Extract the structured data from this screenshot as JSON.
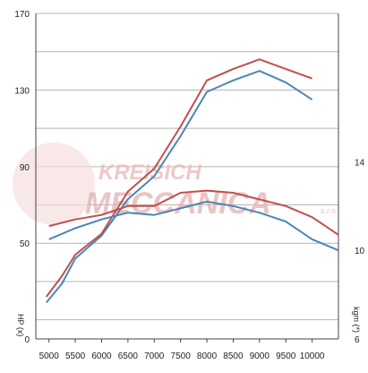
{
  "chart_data": {
    "type": "line",
    "title": "",
    "x": [
      5000,
      5500,
      6000,
      6500,
      7000,
      7500,
      8000,
      8500,
      9000,
      9500,
      10000
    ],
    "x_tick_labels": [
      "5000",
      "5500",
      "6000",
      "6500",
      "7000",
      "7500",
      "8000",
      "8500",
      "9000",
      "9500",
      "10000"
    ],
    "xlim": [
      4750,
      10500
    ],
    "y_left": {
      "label": "HP (x)",
      "ticks": [
        0,
        50,
        90,
        130,
        170
      ],
      "ylim": [
        0,
        170
      ]
    },
    "y_right": {
      "label": "kgm (*)",
      "ticks": [
        6,
        10,
        14
      ],
      "ylim": [
        6,
        20.7
      ]
    },
    "grid": true,
    "series": [
      {
        "axis": "left",
        "color": "#4a86b5",
        "x": [
          4950,
          5250,
          5500,
          6000,
          6500,
          7000,
          7500,
          8000,
          8500,
          9000,
          9500,
          10000
        ],
        "values": [
          19,
          29,
          42,
          54,
          73,
          85,
          106,
          129,
          135,
          140,
          134,
          125
        ]
      },
      {
        "axis": "left",
        "color": "#c0504d",
        "x": [
          4950,
          5250,
          5500,
          6000,
          6500,
          7000,
          7500,
          8000,
          8500,
          9000,
          9500,
          10000
        ],
        "values": [
          22,
          33,
          44,
          55,
          77,
          89,
          111,
          135,
          141,
          146,
          141,
          136
        ]
      },
      {
        "axis": "right",
        "color": "#4a86b5",
        "x": [
          5000,
          5500,
          6000,
          6500,
          7000,
          7500,
          8000,
          8500,
          9000,
          9500,
          10000,
          10500
        ],
        "values": [
          10.5,
          11.0,
          11.4,
          11.7,
          11.6,
          11.9,
          12.2,
          12.0,
          11.7,
          11.3,
          10.5,
          10.0
        ]
      },
      {
        "axis": "right",
        "color": "#c0504d",
        "x": [
          5000,
          5500,
          6000,
          6500,
          7000,
          7500,
          8000,
          8500,
          9000,
          9500,
          10000,
          10500
        ],
        "values": [
          11.1,
          11.4,
          11.6,
          12.0,
          12.0,
          12.6,
          12.7,
          12.6,
          12.3,
          12.0,
          11.5,
          10.7
        ]
      }
    ]
  },
  "watermark": {
    "text_line1": "KREISICH",
    "text_line2": "MECCANICA",
    "suffix": "s.r.o.",
    "color": "#e8a0a0"
  }
}
